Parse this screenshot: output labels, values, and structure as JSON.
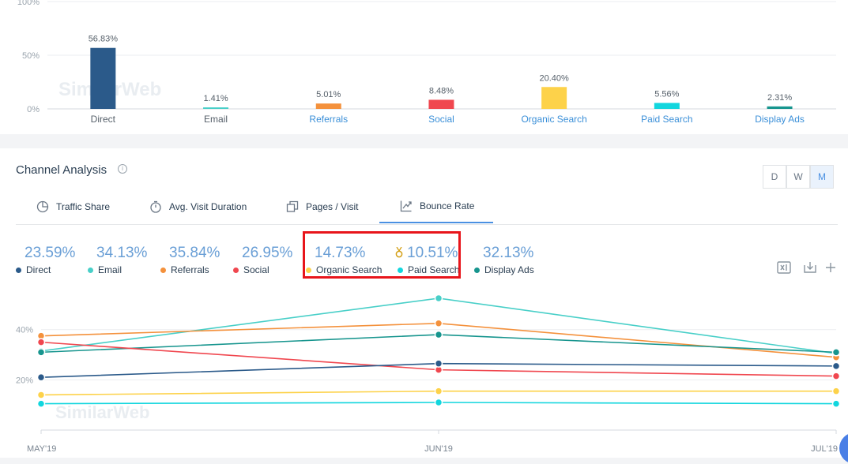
{
  "top_chart": {
    "chart_data": {
      "type": "bar",
      "categories": [
        "Direct",
        "Email",
        "Referrals",
        "Social",
        "Organic Search",
        "Paid Search",
        "Display Ads"
      ],
      "values": [
        56.83,
        1.41,
        5.01,
        8.48,
        20.4,
        5.56,
        2.31
      ],
      "value_labels": [
        "56.83%",
        "1.41%",
        "5.01%",
        "8.48%",
        "20.40%",
        "5.56%",
        "2.31%"
      ],
      "colors": [
        "#2b5a8a",
        "#48cfc8",
        "#f4913c",
        "#f0474f",
        "#fdd24a",
        "#12d6de",
        "#17958e"
      ],
      "link_categories": [
        false,
        false,
        true,
        true,
        true,
        true,
        true
      ],
      "y_ticks": [
        "100%",
        "50%",
        "0%"
      ],
      "ylim": [
        0,
        100
      ],
      "grid": true
    },
    "watermark": "SimilarWeb"
  },
  "channel_analysis": {
    "title": "Channel Analysis",
    "info_icon": "info-icon",
    "granularity": {
      "options": [
        "D",
        "W",
        "M"
      ],
      "selected": "M"
    },
    "tabs": [
      {
        "label": "Traffic Share",
        "icon": "pie-chart-icon",
        "active": false
      },
      {
        "label": "Avg. Visit Duration",
        "icon": "stopwatch-icon",
        "active": false
      },
      {
        "label": "Pages / Visit",
        "icon": "pages-icon",
        "active": false
      },
      {
        "label": "Bounce Rate",
        "icon": "bounce-icon",
        "active": true
      }
    ],
    "legend": [
      {
        "value": "23.59%",
        "label": "Direct",
        "color": "#2b5a8a"
      },
      {
        "value": "34.13%",
        "label": "Email",
        "color": "#48cfc8"
      },
      {
        "value": "35.84%",
        "label": "Referrals",
        "color": "#f4913c"
      },
      {
        "value": "26.95%",
        "label": "Social",
        "color": "#f0474f"
      },
      {
        "value": "14.73%",
        "label": "Organic Search",
        "color": "#fdd24a"
      },
      {
        "value": "10.51%",
        "label": "Paid Search",
        "color": "#12d6de",
        "medal_icon": "medal-icon"
      },
      {
        "value": "32.13%",
        "label": "Display Ads",
        "color": "#17958e"
      }
    ],
    "actions": [
      "excel-export-icon",
      "download-icon",
      "plus-icon"
    ]
  },
  "line_chart": {
    "chart_data": {
      "type": "line",
      "x": [
        "MAY'19",
        "JUN'19",
        "JUL'19"
      ],
      "y_ticks": [
        "40%",
        "20%"
      ],
      "ylim": [
        0,
        55
      ],
      "grid": true,
      "series": [
        {
          "name": "Email",
          "color": "#48cfc8",
          "values": [
            31.5,
            52.5,
            30.5
          ]
        },
        {
          "name": "Referrals",
          "color": "#f4913c",
          "values": [
            37.5,
            42.5,
            29.0
          ]
        },
        {
          "name": "Display Ads",
          "color": "#17958e",
          "values": [
            31.0,
            38.0,
            31.0
          ]
        },
        {
          "name": "Social",
          "color": "#f0474f",
          "values": [
            35.0,
            24.0,
            21.5
          ]
        },
        {
          "name": "Direct",
          "color": "#2b5a8a",
          "values": [
            21.0,
            26.5,
            25.5
          ]
        },
        {
          "name": "Organic Search",
          "color": "#fdd24a",
          "values": [
            14.0,
            15.5,
            15.5
          ]
        },
        {
          "name": "Paid Search",
          "color": "#12d6de",
          "values": [
            10.5,
            11.0,
            10.5
          ]
        }
      ]
    },
    "watermark": "SimilarWeb"
  }
}
